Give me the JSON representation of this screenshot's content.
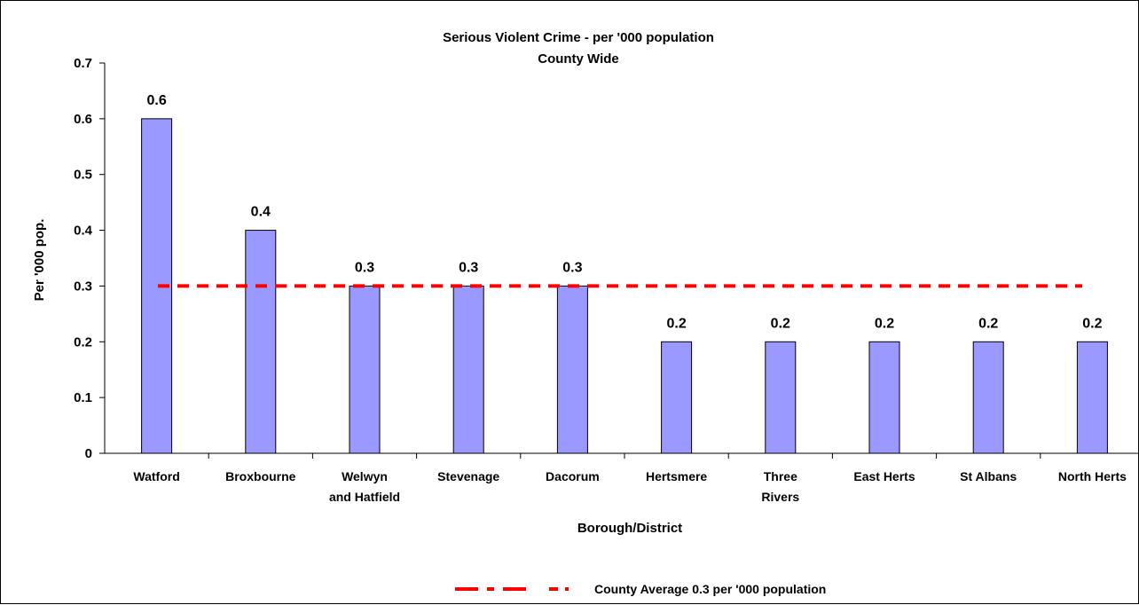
{
  "chart_data": {
    "type": "bar",
    "title": "Serious Violent Crime - per '000 population",
    "subtitle": "County Wide",
    "xlabel": "Borough/District",
    "ylabel": "Per '000 pop.",
    "categories": [
      [
        "Watford"
      ],
      [
        "Broxbourne"
      ],
      [
        "Welwyn",
        "and Hatfield"
      ],
      [
        "Stevenage"
      ],
      [
        "Dacorum"
      ],
      [
        "Hertsmere"
      ],
      [
        "Three",
        "Rivers"
      ],
      [
        "East Herts"
      ],
      [
        "St Albans"
      ],
      [
        "North Herts"
      ]
    ],
    "values": [
      0.6,
      0.4,
      0.3,
      0.3,
      0.3,
      0.2,
      0.2,
      0.2,
      0.2,
      0.2
    ],
    "data_labels": [
      "0.6",
      "0.4",
      "0.3",
      "0.3",
      "0.3",
      "0.2",
      "0.2",
      "0.2",
      "0.2",
      "0.2"
    ],
    "ylim": [
      0,
      0.7
    ],
    "yticks": [
      0,
      0.1,
      0.2,
      0.3,
      0.4,
      0.5,
      0.6,
      0.7
    ],
    "ytick_labels": [
      "0",
      "0.1",
      "0.2",
      "0.3",
      "0.4",
      "0.5",
      "0.6",
      "0.7"
    ],
    "bar_color": "#9999ff",
    "grid": false,
    "reference_line": {
      "value": 0.3,
      "color": "#ff0000",
      "style": "dashed",
      "label": "County Average 0.3 per '000 population"
    },
    "legend_position": "bottom"
  }
}
